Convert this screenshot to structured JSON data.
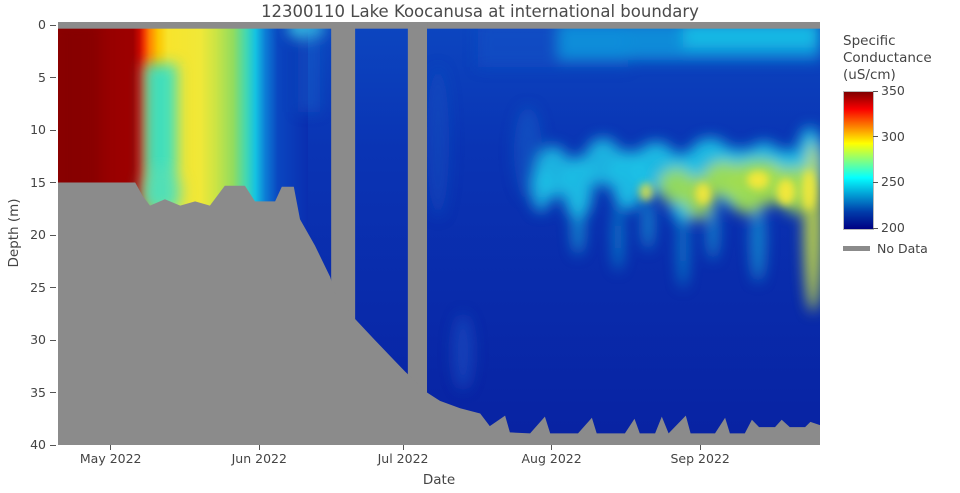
{
  "title": "12300110 Lake Koocanusa at international boundary",
  "axes": {
    "x_label": "Date",
    "y_label": "Depth (m)",
    "x_start_date": "2022-04-20",
    "x_end_date": "2022-09-26",
    "x_ticks": [
      {
        "label": "May 2022",
        "date": "2022-05-01"
      },
      {
        "label": "Jun 2022",
        "date": "2022-06-01"
      },
      {
        "label": "Jul 2022",
        "date": "2022-07-01"
      },
      {
        "label": "Aug 2022",
        "date": "2022-08-01"
      },
      {
        "label": "Sep 2022",
        "date": "2022-09-01"
      }
    ],
    "y_ticks_m": [
      0,
      5,
      10,
      15,
      20,
      25,
      30,
      35,
      40
    ],
    "y_range_m": [
      0,
      40
    ],
    "y_reversed": true
  },
  "colorbar": {
    "title_lines": [
      "Specific",
      "Conductance",
      "(uS/cm)"
    ],
    "ticks": [
      350,
      300,
      250,
      200
    ],
    "min": 200,
    "max": 350,
    "colorscale_name": "jet",
    "colorscale": [
      [
        0.0,
        "rgb(0,0,131)"
      ],
      [
        0.125,
        "rgb(0,60,170)"
      ],
      [
        0.375,
        "rgb(5,255,255)"
      ],
      [
        0.625,
        "rgb(255,255,0)"
      ],
      [
        0.875,
        "rgb(250,0,0)"
      ],
      [
        1.0,
        "rgb(128,0,0)"
      ]
    ]
  },
  "legend": {
    "no_data_label": "No Data",
    "no_data_color": "#8b8b8b"
  },
  "chart_data": {
    "type": "heatmap",
    "title": "12300110 Lake Koocanusa at international boundary",
    "xlabel": "Date",
    "ylabel": "Depth (m)",
    "units": "uS/cm",
    "value_range": [
      200,
      350
    ],
    "x_dates": [
      "2022-04-22",
      "2022-05-01",
      "2022-05-09",
      "2022-05-15",
      "2022-05-21",
      "2022-05-27",
      "2022-06-01",
      "2022-06-07",
      "2022-06-12",
      "2022-06-22",
      "2022-07-01",
      "2022-07-09",
      "2022-07-20",
      "2022-08-01",
      "2022-08-15",
      "2022-09-01",
      "2022-09-15",
      "2022-09-24"
    ],
    "y_depths_m": [
      0,
      5,
      10,
      15,
      20,
      25,
      30,
      35
    ],
    "values_by_date": [
      [
        345,
        345,
        345,
        346,
        null,
        null,
        null,
        null
      ],
      [
        344,
        345,
        345,
        346,
        null,
        null,
        null,
        null
      ],
      [
        312,
        262,
        255,
        256,
        null,
        null,
        null,
        null
      ],
      [
        302,
        298,
        296,
        294,
        null,
        null,
        null,
        null
      ],
      [
        294,
        288,
        286,
        287,
        null,
        null,
        null,
        null
      ],
      [
        262,
        256,
        254,
        255,
        null,
        null,
        null,
        null
      ],
      [
        240,
        234,
        232,
        233,
        null,
        null,
        null,
        null
      ],
      [
        220,
        214,
        212,
        213,
        215,
        null,
        null,
        null
      ],
      [
        246,
        216,
        210,
        209,
        211,
        null,
        null,
        null
      ],
      [
        215,
        212,
        209,
        207,
        207,
        209,
        null,
        null
      ],
      [
        212,
        209,
        207,
        206,
        206,
        207,
        210,
        null
      ],
      [
        214,
        211,
        208,
        207,
        205,
        205,
        207,
        210
      ],
      [
        218,
        214,
        210,
        208,
        206,
        205,
        205,
        207
      ],
      [
        224,
        219,
        240,
        235,
        210,
        206,
        205,
        205
      ],
      [
        228,
        224,
        252,
        248,
        214,
        208,
        206,
        205
      ],
      [
        236,
        242,
        256,
        276,
        250,
        212,
        206,
        205
      ],
      [
        242,
        247,
        262,
        298,
        272,
        220,
        208,
        205
      ],
      [
        246,
        253,
        263,
        296,
        288,
        262,
        230,
        206
      ]
    ],
    "no_data": {
      "color": "#8b8b8b",
      "surface_strip_depth_m": 0.35,
      "vertical_band_dates": [
        [
          "2022-06-16",
          "2022-06-21"
        ],
        [
          "2022-07-02",
          "2022-07-06"
        ]
      ],
      "day0": "2022-04-20",
      "bottom_boundary_day_depth": [
        [
          0,
          15
        ],
        [
          16.1,
          15
        ],
        [
          17.7,
          16.3
        ],
        [
          19.2,
          17.2
        ],
        [
          22.3,
          16.6
        ],
        [
          25.5,
          17.2
        ],
        [
          28.6,
          16.8
        ],
        [
          31.7,
          17.2
        ],
        [
          34.8,
          15.3
        ],
        [
          39,
          15.3
        ],
        [
          41.1,
          16.8
        ],
        [
          45.3,
          16.8
        ],
        [
          46.7,
          15.4
        ],
        [
          49.2,
          15.4
        ],
        [
          50.5,
          18.5
        ],
        [
          53.6,
          21
        ],
        [
          56.8,
          24
        ],
        [
          57.8,
          25.5
        ],
        [
          62,
          28
        ],
        [
          66.1,
          30
        ],
        [
          70.3,
          32
        ],
        [
          72.4,
          33
        ],
        [
          77,
          35
        ],
        [
          79.7,
          35.8
        ],
        [
          83.9,
          36.5
        ],
        [
          88.1,
          37
        ],
        [
          90.1,
          38.2
        ],
        [
          93.3,
          37.2
        ],
        [
          94.3,
          38.8
        ],
        [
          98.5,
          38.9
        ],
        [
          101.6,
          37.3
        ],
        [
          102.7,
          38.9
        ],
        [
          108.5,
          38.9
        ],
        [
          111.4,
          37.4
        ],
        [
          112.4,
          38.9
        ],
        [
          118.3,
          38.9
        ],
        [
          120.3,
          37.5
        ],
        [
          121.4,
          38.9
        ],
        [
          124.6,
          38.9
        ],
        [
          126,
          37.3
        ],
        [
          127.4,
          38.9
        ],
        [
          131,
          37.2
        ],
        [
          132,
          38.9
        ],
        [
          137.1,
          38.9
        ],
        [
          139.2,
          37.4
        ],
        [
          140.2,
          38.9
        ],
        [
          143.3,
          38.9
        ],
        [
          144.8,
          37.6
        ],
        [
          146.3,
          38.3
        ],
        [
          149.6,
          38.3
        ],
        [
          151,
          37.6
        ],
        [
          152.7,
          38.3
        ],
        [
          155.9,
          38.3
        ],
        [
          157,
          37.8
        ],
        [
          159,
          38.1
        ]
      ]
    }
  }
}
